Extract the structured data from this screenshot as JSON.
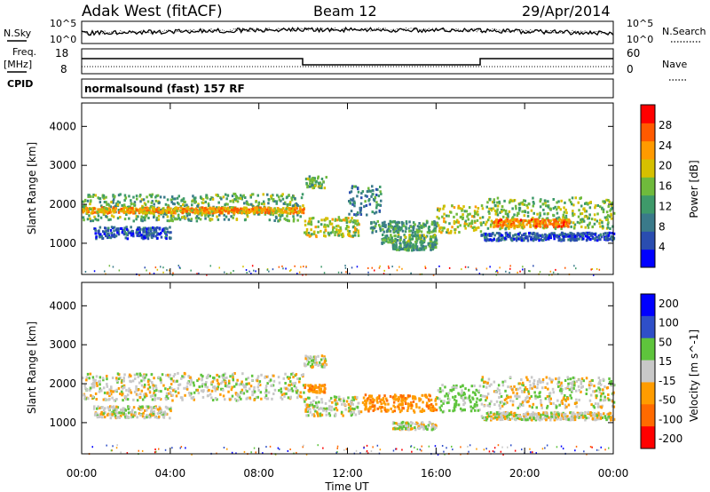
{
  "header": {
    "station": "Adak West (fitACF)",
    "beam": "Beam 12",
    "date": "29/Apr/2014"
  },
  "sky_panel": {
    "left_label": "N.Sky",
    "right_label": "N.Search",
    "left_ticks": [
      "10^5",
      "10^0"
    ],
    "right_ticks": [
      "10^5",
      "10^0"
    ]
  },
  "freq_panel": {
    "label_line1": "Freq.",
    "label_line2": "[MHz]",
    "cpid_label": "CPID",
    "left_ticks": [
      "18",
      "8"
    ],
    "right_ticks": [
      "60",
      "0"
    ],
    "right_label": "Nave"
  },
  "cpid_text": "normalsound (fast) 157 RF",
  "colors": {
    "power": [
      "#0000ff",
      "#2a4db0",
      "#3a7a8a",
      "#3e9a6a",
      "#6fba3c",
      "#d6c000",
      "#ff9a00",
      "#ff5a00",
      "#ff0000"
    ],
    "velocity": [
      "#0000ff",
      "#2f4fc8",
      "#5ec43c",
      "#c8c8c8",
      "#ff9c00",
      "#ff6a00",
      "#ff0000"
    ]
  },
  "chart_data": [
    {
      "type": "heatmap",
      "parameter": "Power",
      "ylabel": "Slant Range [km]",
      "yticks": [
        1000,
        2000,
        3000,
        4000
      ],
      "ylim": [
        200,
        4600
      ],
      "xlim_hours": [
        0,
        24
      ],
      "colorbar_label": "Power [dB]",
      "colorbar_ticks": [
        4,
        8,
        12,
        16,
        20,
        24,
        28
      ],
      "colorbar_range": [
        0,
        32
      ],
      "regions": [
        {
          "t0": 0.0,
          "t1": 10.0,
          "r0": 1600,
          "r1": 2300,
          "power": 14
        },
        {
          "t0": 0.0,
          "t1": 10.0,
          "r0": 1800,
          "r1": 1950,
          "power": 22
        },
        {
          "t0": 0.5,
          "t1": 4.0,
          "r0": 1150,
          "r1": 1450,
          "power": 6
        },
        {
          "t0": 10.0,
          "t1": 11.0,
          "r0": 2450,
          "r1": 2750,
          "power": 14
        },
        {
          "t0": 10.0,
          "t1": 12.5,
          "r0": 1200,
          "r1": 1700,
          "power": 18
        },
        {
          "t0": 12.0,
          "t1": 13.5,
          "r0": 1700,
          "r1": 2500,
          "power": 10
        },
        {
          "t0": 13.0,
          "t1": 16.0,
          "r0": 1300,
          "r1": 1600,
          "power": 12
        },
        {
          "t0": 13.5,
          "t1": 16.0,
          "r0": 1000,
          "r1": 1250,
          "power": 14
        },
        {
          "t0": 14.0,
          "t1": 16.0,
          "r0": 850,
          "r1": 1000,
          "power": 12
        },
        {
          "t0": 16.0,
          "t1": 18.0,
          "r0": 1300,
          "r1": 2000,
          "power": 18
        },
        {
          "t0": 18.0,
          "t1": 24.0,
          "r0": 1400,
          "r1": 2200,
          "power": 16
        },
        {
          "t0": 18.5,
          "t1": 22.0,
          "r0": 1450,
          "r1": 1650,
          "power": 24
        },
        {
          "t0": 18.0,
          "t1": 24.0,
          "r0": 1100,
          "r1": 1300,
          "power": 6
        }
      ]
    },
    {
      "type": "heatmap",
      "parameter": "Velocity",
      "ylabel": "Slant Range [km]",
      "yticks": [
        1000,
        2000,
        3000,
        4000
      ],
      "ylim": [
        200,
        4600
      ],
      "xlim_hours": [
        0,
        24
      ],
      "xticks": [
        "00:00",
        "04:00",
        "08:00",
        "12:00",
        "16:00",
        "20:00",
        "00:00"
      ],
      "xlabel": "Time UT",
      "colorbar_label": "Velocity [m s^-1]",
      "colorbar_ticks": [
        200,
        100,
        50,
        15,
        -15,
        -50,
        -100,
        -200
      ],
      "regions": [
        {
          "t0": 0.0,
          "t1": 10.0,
          "r0": 1600,
          "r1": 2300,
          "velocity": 0
        },
        {
          "t0": 0.5,
          "t1": 4.0,
          "r0": 1150,
          "r1": 1450,
          "velocity": 0
        },
        {
          "t0": 10.0,
          "t1": 11.0,
          "r0": 1800,
          "r1": 2000,
          "velocity": -60
        },
        {
          "t0": 10.0,
          "t1": 11.0,
          "r0": 2450,
          "r1": 2750,
          "velocity": 0
        },
        {
          "t0": 10.0,
          "t1": 12.5,
          "r0": 1200,
          "r1": 1700,
          "velocity": 0
        },
        {
          "t0": 12.5,
          "t1": 16.0,
          "r0": 1300,
          "r1": 1750,
          "velocity": -60
        },
        {
          "t0": 14.0,
          "t1": 16.0,
          "r0": 850,
          "r1": 1050,
          "velocity": 0
        },
        {
          "t0": 16.0,
          "t1": 18.0,
          "r0": 1300,
          "r1": 2000,
          "velocity": 30
        },
        {
          "t0": 18.0,
          "t1": 24.0,
          "r0": 1400,
          "r1": 2200,
          "velocity": 0
        },
        {
          "t0": 18.0,
          "t1": 24.0,
          "r0": 1100,
          "r1": 1300,
          "velocity": 0
        }
      ]
    }
  ]
}
